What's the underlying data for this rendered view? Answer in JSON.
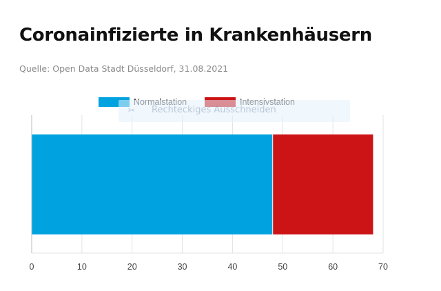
{
  "header": {
    "title": "Coronainfizierte in Krankenhäusern",
    "source": "Quelle: Open Data Stadt Düsseldorf, 31.08.2021"
  },
  "overlay": {
    "label": "Rechteckiges Ausschneiden",
    "icon": "scissors-icon"
  },
  "chart_data": {
    "type": "bar",
    "orientation": "horizontal",
    "stacked": true,
    "categories": [
      ""
    ],
    "series": [
      {
        "name": "Normalstation",
        "values": [
          48
        ],
        "color": "#00a3e0"
      },
      {
        "name": "Intensivstation",
        "values": [
          20
        ],
        "color": "#cc1417"
      }
    ],
    "xlim": [
      0,
      70
    ],
    "xticks": [
      "0",
      "10",
      "20",
      "30",
      "40",
      "50",
      "60",
      "70"
    ],
    "xlabel": "",
    "ylabel": "",
    "grid": true,
    "legend": "top-center"
  }
}
